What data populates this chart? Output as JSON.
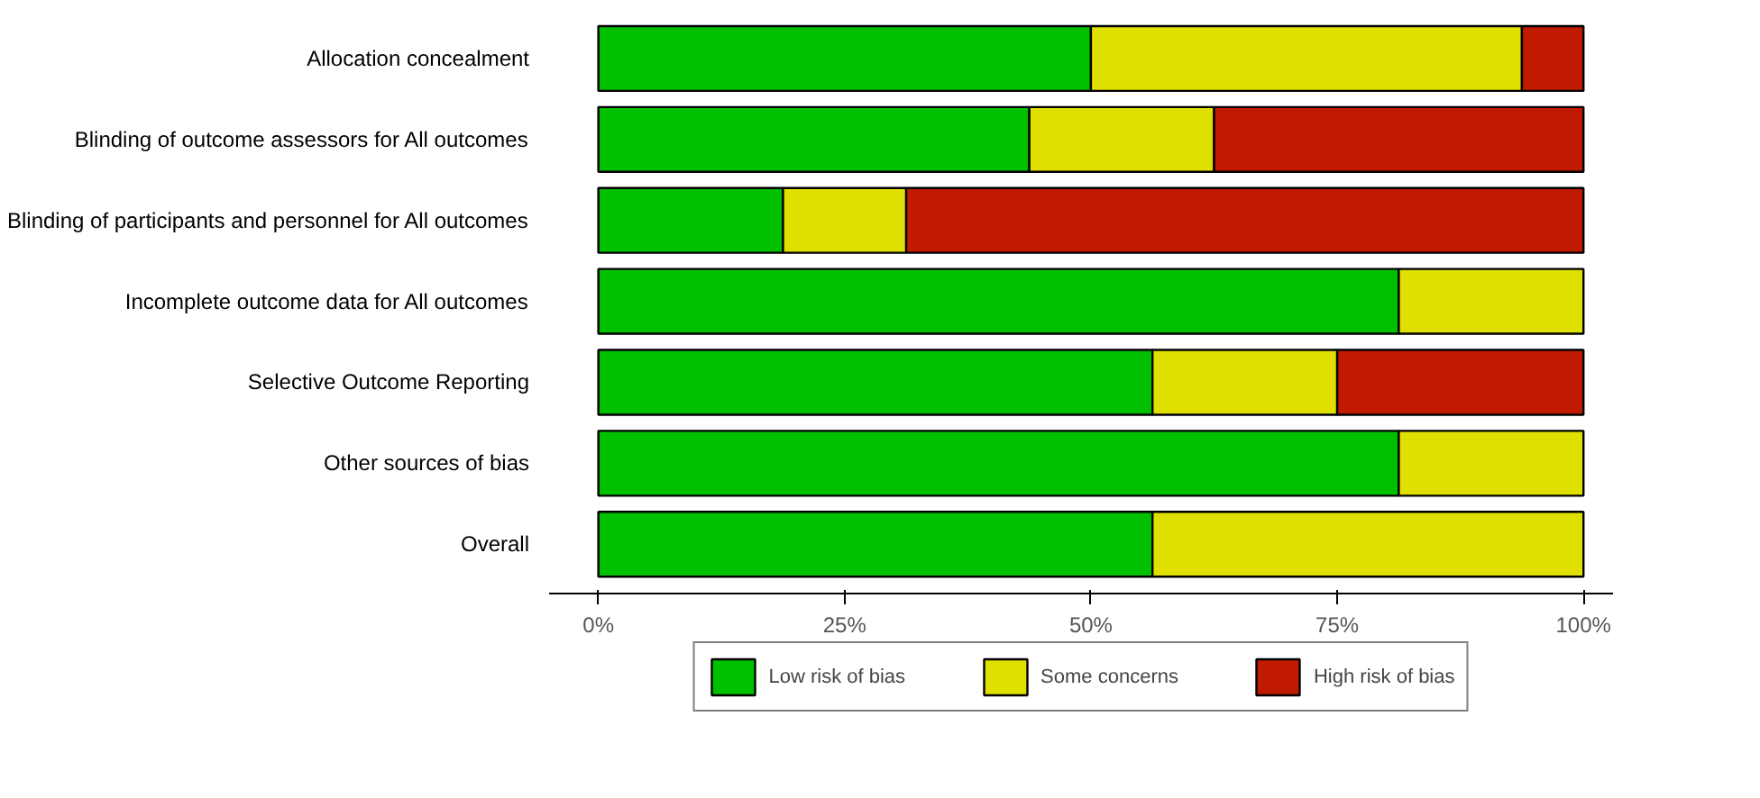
{
  "chart_data": {
    "type": "bar",
    "orientation": "horizontal",
    "stacked": true,
    "categories": [
      "Allocation concealment",
      "Blinding of outcome assessors for All outcomes",
      "Blinding of participants and personnel for All outcomes",
      "Incomplete outcome data for All outcomes",
      "Selective Outcome Reporting",
      "Other sources of bias",
      "Overall"
    ],
    "series": [
      {
        "name": "Low risk of bias",
        "color": "#00c000",
        "values": [
          50,
          43.75,
          18.75,
          81.25,
          56.25,
          81.25,
          56.25
        ]
      },
      {
        "name": "Some concerns",
        "color": "#e0e000",
        "values": [
          43.75,
          18.75,
          12.5,
          18.75,
          18.75,
          18.75,
          43.75
        ]
      },
      {
        "name": "High risk of bias",
        "color": "#c01a00",
        "values": [
          6.25,
          37.5,
          68.75,
          0,
          25,
          0,
          0
        ]
      }
    ],
    "xlim": [
      -5,
      103
    ],
    "xticks": [
      {
        "value": 0,
        "label": "0%"
      },
      {
        "value": 25,
        "label": "25%"
      },
      {
        "value": 50,
        "label": "50%"
      },
      {
        "value": 75,
        "label": "75%"
      },
      {
        "value": 100,
        "label": "100%"
      }
    ],
    "grid": false,
    "legend": "bottom"
  }
}
